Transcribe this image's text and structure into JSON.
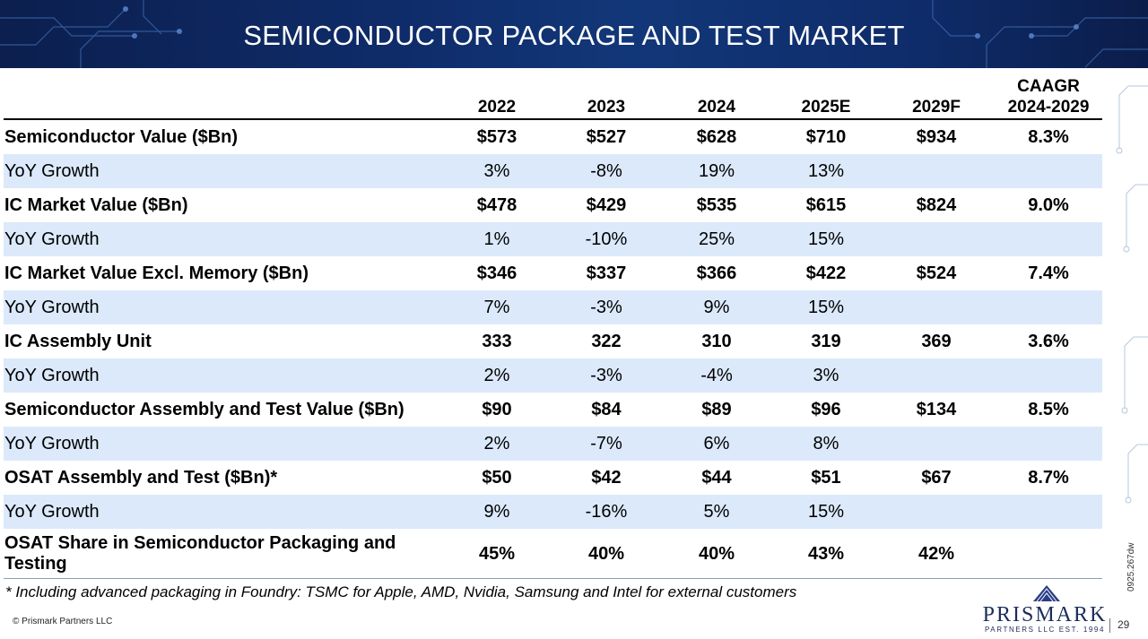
{
  "title": "SEMICONDUCTOR PACKAGE AND TEST MARKET",
  "table": {
    "columns": [
      "2022",
      "2023",
      "2024",
      "2025E",
      "2029F",
      "CAAGR",
      "2024-2029"
    ],
    "rows": [
      {
        "label": "Semiconductor Value ($Bn)",
        "values": [
          "$573",
          "$527",
          "$628",
          "$710",
          "$934",
          "8.3%"
        ]
      },
      {
        "label": "YoY Growth",
        "values": [
          "3%",
          "-8%",
          "19%",
          "13%",
          "",
          ""
        ]
      },
      {
        "label": "IC Market Value ($Bn)",
        "values": [
          "$478",
          "$429",
          "$535",
          "$615",
          "$824",
          "9.0%"
        ]
      },
      {
        "label": "YoY Growth",
        "values": [
          "1%",
          "-10%",
          "25%",
          "15%",
          "",
          ""
        ]
      },
      {
        "label": "IC Market Value Excl. Memory ($Bn)",
        "values": [
          "$346",
          "$337",
          "$366",
          "$422",
          "$524",
          "7.4%"
        ]
      },
      {
        "label": "YoY Growth",
        "values": [
          "7%",
          "-3%",
          "9%",
          "15%",
          "",
          ""
        ]
      },
      {
        "label": "IC Assembly Unit",
        "values": [
          "333",
          "322",
          "310",
          "319",
          "369",
          "3.6%"
        ]
      },
      {
        "label": "YoY Growth",
        "values": [
          "2%",
          "-3%",
          "-4%",
          "3%",
          "",
          ""
        ]
      },
      {
        "label": "Semiconductor Assembly and Test Value ($Bn)",
        "values": [
          "$90",
          "$84",
          "$89",
          "$96",
          "$134",
          "8.5%"
        ]
      },
      {
        "label": "YoY Growth",
        "values": [
          "2%",
          "-7%",
          "6%",
          "8%",
          "",
          ""
        ]
      },
      {
        "label": "OSAT Assembly and Test ($Bn)*",
        "values": [
          "$50",
          "$42",
          "$44",
          "$51",
          "$67",
          "8.7%"
        ]
      },
      {
        "label": "YoY Growth",
        "values": [
          "9%",
          "-16%",
          "5%",
          "15%",
          "",
          ""
        ]
      },
      {
        "label": "OSAT Share in Semiconductor Packaging and Testing",
        "values": [
          "45%",
          "40%",
          "40%",
          "43%",
          "42%",
          ""
        ]
      }
    ]
  },
  "footnote": "* Including advanced packaging in Foundry: TSMC for Apple, AMD, Nvidia, Samsung and Intel for external customers",
  "copyright": "© Prismark Partners LLC",
  "doc_code": "0925.267dw",
  "logo": {
    "name": "PRISMARK",
    "subtitle": "PARTNERS LLC  EST. 1994"
  },
  "page_number": "29",
  "colors": {
    "banner": "#0f2c6a",
    "row_shade": "#dbe9fa",
    "logo": "#1c2d5c"
  }
}
